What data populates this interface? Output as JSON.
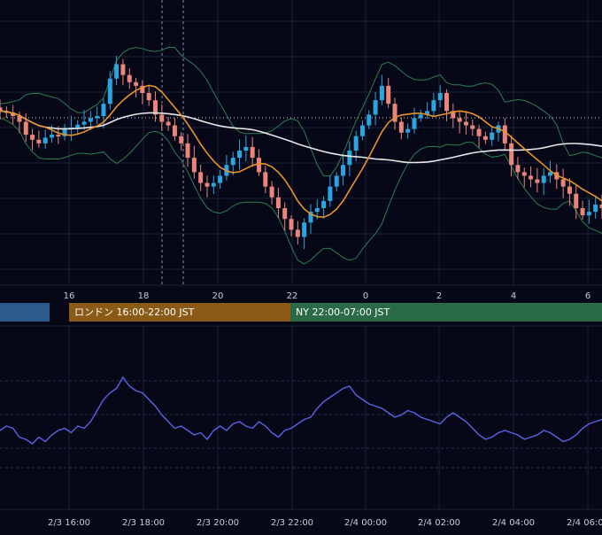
{
  "colors": {
    "background": "#060818",
    "grid": "#1c2238",
    "candle_up": "#2aa5e0",
    "candle_down": "#e9857a",
    "bollinger": "#2e7d4f",
    "ma_fast": "#e8922a",
    "ma_slow": "#e8e8e8",
    "oscillator": "#5a63e6",
    "axis_text": "#c8ccd8"
  },
  "sessions": [
    {
      "label": "",
      "color": "#2b5a8c"
    },
    {
      "label": "ロンドン 16:00-22:00 JST",
      "color": "#8a5a16"
    },
    {
      "label": "NY 22:00-07:00 JST",
      "color": "#2a6a46"
    }
  ],
  "chart_data": [
    {
      "type": "candlestick",
      "x_ticks": [
        "16",
        "18",
        "20",
        "22",
        "0",
        "2",
        "4",
        "6"
      ],
      "series": [
        {
          "values": [
            0.95,
            0.93,
            0.88,
            0.8,
            0.62,
            0.55,
            0.5,
            0.58,
            0.62,
            0.6,
            0.7,
            0.72,
            0.76,
            0.8,
            0.85,
            0.88,
            1.05,
            1.4,
            1.6,
            1.45,
            1.35,
            1.3,
            1.2,
            1.1,
            0.9,
            0.8,
            0.75,
            0.6,
            0.5,
            0.3,
            0.1,
            -0.05,
            -0.1,
            -0.05,
            0.05,
            0.2,
            0.3,
            0.4,
            0.45,
            0.3,
            0.1,
            -0.1,
            -0.25,
            -0.4,
            -0.55,
            -0.7,
            -0.8,
            -0.6,
            -0.45,
            -0.4,
            -0.3,
            -0.1,
            0.05,
            0.2,
            0.4,
            0.6,
            0.75,
            0.9,
            1.1,
            1.3,
            1.05,
            0.8,
            0.65,
            0.7,
            0.85,
            0.9,
            0.95,
            1.1,
            1.2,
            0.95,
            0.85,
            0.8,
            0.75,
            0.7,
            0.6,
            0.55,
            0.65,
            0.75,
            0.5,
            0.2,
            0.1,
            0.05,
            0.0,
            -0.05,
            0.05,
            0.1,
            0.0,
            -0.1,
            -0.2,
            -0.4,
            -0.5,
            -0.45,
            -0.35,
            -0.4
          ]
        }
      ]
    },
    {
      "type": "line",
      "x_ticks": [
        "2/3 16:00",
        "2/3 18:00",
        "2/3 20:00",
        "2/3 22:00",
        "2/4 00:00",
        "2/4 02:00",
        "2/4 04:00",
        "2/4 06:00"
      ],
      "series": [
        {
          "values": [
            0.0,
            0.1,
            0.05,
            -0.15,
            -0.2,
            -0.3,
            -0.15,
            -0.25,
            -0.1,
            0.0,
            0.05,
            -0.05,
            0.1,
            0.05,
            0.2,
            0.45,
            0.7,
            0.85,
            0.95,
            1.2,
            1.0,
            0.9,
            0.85,
            0.7,
            0.55,
            0.35,
            0.2,
            0.05,
            0.1,
            0.0,
            -0.1,
            -0.05,
            -0.2,
            0.0,
            0.1,
            0.0,
            0.15,
            0.2,
            0.1,
            0.05,
            0.2,
            0.1,
            -0.05,
            -0.15,
            0.0,
            0.05,
            0.15,
            0.25,
            0.3,
            0.5,
            0.65,
            0.75,
            0.85,
            0.95,
            1.0,
            0.8,
            0.7,
            0.6,
            0.55,
            0.5,
            0.4,
            0.3,
            0.35,
            0.45,
            0.4,
            0.3,
            0.25,
            0.2,
            0.15,
            0.3,
            0.4,
            0.3,
            0.2,
            0.05,
            -0.1,
            -0.2,
            -0.15,
            -0.05,
            0.0,
            -0.05,
            -0.1,
            -0.2,
            -0.15,
            -0.1,
            0.0,
            -0.05,
            -0.15,
            -0.25,
            -0.2,
            -0.1,
            0.05,
            0.15,
            0.2,
            0.25
          ]
        }
      ]
    }
  ]
}
